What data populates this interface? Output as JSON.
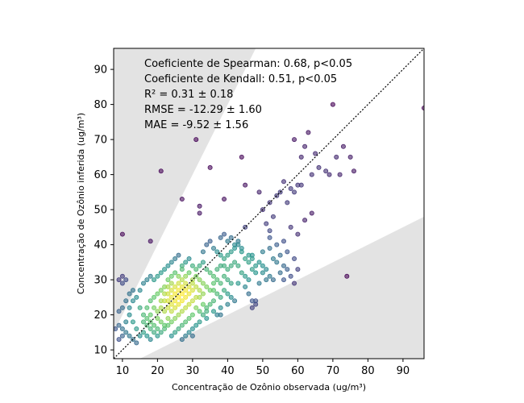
{
  "chart_data": {
    "type": "scatter",
    "xlabel": "Concentração de Ozônio observada (ug/m³)",
    "ylabel": "Concentração de Ozônio inferida (ug/m³)",
    "xlim": [
      7.5,
      96
    ],
    "ylim": [
      7.5,
      96
    ],
    "xticks": [
      10,
      20,
      30,
      40,
      50,
      60,
      70,
      80,
      90
    ],
    "yticks": [
      10,
      20,
      30,
      40,
      50,
      60,
      70,
      80,
      90
    ],
    "annotations": [
      "Coeficiente de Spearman: 0.68, p<0.05",
      "Coeficiente de Kendall: 0.51, p<0.05",
      "R² = 0.31 ± 0.18",
      "RMSE = -12.29 ± 1.60",
      "MAE = -9.52 ± 1.56"
    ],
    "reference_line": "1:1, dotted",
    "shaded_regions": "outside ±50% of 1:1 line",
    "colormap": "viridis (point density)",
    "colors": {
      "low_density": "#440154",
      "mid_density": "#21918c",
      "high_density": "#fde725",
      "shade": "#e3e3e3"
    },
    "points": [
      [
        20,
        19
      ],
      [
        22,
        21
      ],
      [
        24,
        23
      ],
      [
        25,
        24
      ],
      [
        26,
        25
      ],
      [
        27,
        26
      ],
      [
        28,
        27
      ],
      [
        26,
        27
      ],
      [
        25,
        26
      ],
      [
        24,
        25
      ],
      [
        23,
        24
      ],
      [
        25,
        28
      ],
      [
        27,
        28
      ],
      [
        26,
        29
      ],
      [
        24,
        27
      ],
      [
        28,
        25
      ],
      [
        29,
        28
      ],
      [
        27,
        24
      ],
      [
        25,
        22
      ],
      [
        26,
        23
      ],
      [
        23,
        22
      ],
      [
        22,
        24
      ],
      [
        24,
        21
      ],
      [
        28,
        29
      ],
      [
        29,
        26
      ],
      [
        30,
        27
      ],
      [
        21,
        22
      ],
      [
        23,
        26
      ],
      [
        27,
        30
      ],
      [
        30,
        29
      ],
      [
        18,
        20
      ],
      [
        19,
        22
      ],
      [
        17,
        19
      ],
      [
        20,
        16
      ],
      [
        21,
        18
      ],
      [
        22,
        17
      ],
      [
        23,
        19
      ],
      [
        19,
        17
      ],
      [
        18,
        18
      ],
      [
        20,
        21
      ],
      [
        21,
        24
      ],
      [
        22,
        26
      ],
      [
        23,
        28
      ],
      [
        24,
        29
      ],
      [
        26,
        31
      ],
      [
        28,
        31
      ],
      [
        30,
        30
      ],
      [
        31,
        28
      ],
      [
        32,
        27
      ],
      [
        31,
        25
      ],
      [
        30,
        24
      ],
      [
        29,
        23
      ],
      [
        28,
        22
      ],
      [
        27,
        21
      ],
      [
        26,
        20
      ],
      [
        25,
        19
      ],
      [
        24,
        18
      ],
      [
        23,
        17
      ],
      [
        22,
        16
      ],
      [
        21,
        15
      ],
      [
        20,
        14
      ],
      [
        19,
        15
      ],
      [
        18,
        16
      ],
      [
        17,
        17
      ],
      [
        16,
        18
      ],
      [
        16,
        20
      ],
      [
        15,
        22
      ],
      [
        17,
        22
      ],
      [
        18,
        24
      ],
      [
        19,
        25
      ],
      [
        20,
        26
      ],
      [
        21,
        27
      ],
      [
        22,
        28
      ],
      [
        23,
        30
      ],
      [
        24,
        31
      ],
      [
        25,
        32
      ],
      [
        27,
        33
      ],
      [
        29,
        32
      ],
      [
        31,
        31
      ],
      [
        32,
        30
      ],
      [
        33,
        29
      ],
      [
        34,
        28
      ],
      [
        33,
        26
      ],
      [
        32,
        25
      ],
      [
        33,
        23
      ],
      [
        34,
        22
      ],
      [
        32,
        21
      ],
      [
        30,
        20
      ],
      [
        29,
        19
      ],
      [
        28,
        18
      ],
      [
        27,
        17
      ],
      [
        26,
        16
      ],
      [
        25,
        15
      ],
      [
        24,
        14
      ],
      [
        14,
        16
      ],
      [
        13,
        18
      ],
      [
        12,
        20
      ],
      [
        11,
        18
      ],
      [
        10,
        16
      ],
      [
        9,
        17
      ],
      [
        12,
        14
      ],
      [
        13,
        13
      ],
      [
        14,
        12
      ],
      [
        15,
        14
      ],
      [
        16,
        15
      ],
      [
        17,
        14
      ],
      [
        18,
        13
      ],
      [
        11,
        15
      ],
      [
        10,
        14
      ],
      [
        9,
        13
      ],
      [
        8,
        16
      ],
      [
        12,
        22
      ],
      [
        13,
        24
      ],
      [
        14,
        25
      ],
      [
        11,
        24
      ],
      [
        10,
        22
      ],
      [
        9,
        21
      ],
      [
        12,
        26
      ],
      [
        13,
        27
      ],
      [
        15,
        27
      ],
      [
        16,
        29
      ],
      [
        17,
        30
      ],
      [
        18,
        31
      ],
      [
        19,
        30
      ],
      [
        20,
        31
      ],
      [
        21,
        32
      ],
      [
        22,
        33
      ],
      [
        23,
        34
      ],
      [
        24,
        35
      ],
      [
        25,
        36
      ],
      [
        26,
        37
      ],
      [
        27,
        34
      ],
      [
        28,
        35
      ],
      [
        29,
        36
      ],
      [
        30,
        34
      ],
      [
        31,
        33
      ],
      [
        32,
        34
      ],
      [
        33,
        35
      ],
      [
        34,
        33
      ],
      [
        35,
        32
      ],
      [
        36,
        31
      ],
      [
        37,
        30
      ],
      [
        38,
        29
      ],
      [
        36,
        27
      ],
      [
        37,
        26
      ],
      [
        38,
        25
      ],
      [
        36,
        24
      ],
      [
        35,
        23
      ],
      [
        34,
        21
      ],
      [
        33,
        20
      ],
      [
        34,
        19
      ],
      [
        32,
        18
      ],
      [
        31,
        17
      ],
      [
        30,
        16
      ],
      [
        29,
        15
      ],
      [
        28,
        14
      ],
      [
        27,
        13
      ],
      [
        31,
        22
      ],
      [
        35,
        27
      ],
      [
        36,
        29
      ],
      [
        37,
        33
      ],
      [
        38,
        34
      ],
      [
        39,
        31
      ],
      [
        40,
        30
      ],
      [
        41,
        29
      ],
      [
        39,
        27
      ],
      [
        40,
        26
      ],
      [
        41,
        25
      ],
      [
        42,
        24
      ],
      [
        40,
        23
      ],
      [
        38,
        22
      ],
      [
        37,
        20
      ],
      [
        36,
        21
      ],
      [
        33,
        38
      ],
      [
        34,
        40
      ],
      [
        35,
        41
      ],
      [
        36,
        39
      ],
      [
        37,
        38
      ],
      [
        38,
        37
      ],
      [
        39,
        36
      ],
      [
        40,
        37
      ],
      [
        41,
        38
      ],
      [
        42,
        39
      ],
      [
        43,
        40
      ],
      [
        44,
        38
      ],
      [
        45,
        36
      ],
      [
        46,
        35
      ],
      [
        47,
        36
      ],
      [
        48,
        34
      ],
      [
        44,
        32
      ],
      [
        45,
        31
      ],
      [
        46,
        30
      ],
      [
        47,
        33
      ],
      [
        48,
        32
      ],
      [
        43,
        34
      ],
      [
        42,
        35
      ],
      [
        41,
        34
      ],
      [
        40,
        33
      ],
      [
        39,
        34
      ],
      [
        38,
        42
      ],
      [
        39,
        43
      ],
      [
        40,
        41
      ],
      [
        41,
        42
      ],
      [
        42,
        40
      ],
      [
        43,
        41
      ],
      [
        44,
        39
      ],
      [
        46,
        37
      ],
      [
        47,
        37
      ],
      [
        49,
        35
      ],
      [
        50,
        34
      ],
      [
        51,
        33
      ],
      [
        50,
        32
      ],
      [
        52,
        31
      ],
      [
        53,
        30
      ],
      [
        51,
        30
      ],
      [
        49,
        29
      ],
      [
        50,
        38
      ],
      [
        52,
        39
      ],
      [
        53,
        36
      ],
      [
        55,
        37
      ],
      [
        54,
        35
      ],
      [
        56,
        34
      ],
      [
        57,
        33
      ],
      [
        55,
        32
      ],
      [
        58,
        31
      ],
      [
        56,
        30
      ],
      [
        59,
        29
      ],
      [
        60,
        33
      ],
      [
        45,
        28
      ],
      [
        46,
        26
      ],
      [
        47,
        24
      ],
      [
        48,
        23
      ],
      [
        43,
        29
      ],
      [
        10,
        29
      ],
      [
        9,
        30
      ],
      [
        10,
        31
      ],
      [
        11,
        30
      ],
      [
        10,
        43
      ],
      [
        18,
        41
      ],
      [
        21,
        61
      ],
      [
        27,
        53
      ],
      [
        31,
        70
      ],
      [
        32,
        49
      ],
      [
        32,
        51
      ],
      [
        35,
        62
      ],
      [
        39,
        53
      ],
      [
        38,
        20
      ],
      [
        44,
        65
      ],
      [
        45,
        57
      ],
      [
        45,
        45
      ],
      [
        49,
        55
      ],
      [
        50,
        50
      ],
      [
        51,
        46
      ],
      [
        52,
        52
      ],
      [
        52,
        44
      ],
      [
        53,
        48
      ],
      [
        54,
        54
      ],
      [
        55,
        55
      ],
      [
        56,
        58
      ],
      [
        57,
        52
      ],
      [
        58,
        56
      ],
      [
        59,
        55
      ],
      [
        60,
        57
      ],
      [
        61,
        57
      ],
      [
        59,
        70
      ],
      [
        61,
        65
      ],
      [
        62,
        68
      ],
      [
        63,
        72
      ],
      [
        64,
        60
      ],
      [
        65,
        66
      ],
      [
        66,
        62
      ],
      [
        68,
        61
      ],
      [
        69,
        60
      ],
      [
        70,
        80
      ],
      [
        71,
        65
      ],
      [
        72,
        60
      ],
      [
        73,
        68
      ],
      [
        75,
        65
      ],
      [
        76,
        61
      ],
      [
        74,
        31
      ],
      [
        59,
        36
      ],
      [
        60,
        43
      ],
      [
        57,
        38
      ],
      [
        62,
        47
      ],
      [
        64,
        49
      ],
      [
        96,
        79
      ],
      [
        30,
        14
      ],
      [
        47,
        22
      ],
      [
        48,
        24
      ],
      [
        52,
        42
      ],
      [
        54,
        40
      ],
      [
        58,
        45
      ],
      [
        56,
        41
      ]
    ]
  }
}
